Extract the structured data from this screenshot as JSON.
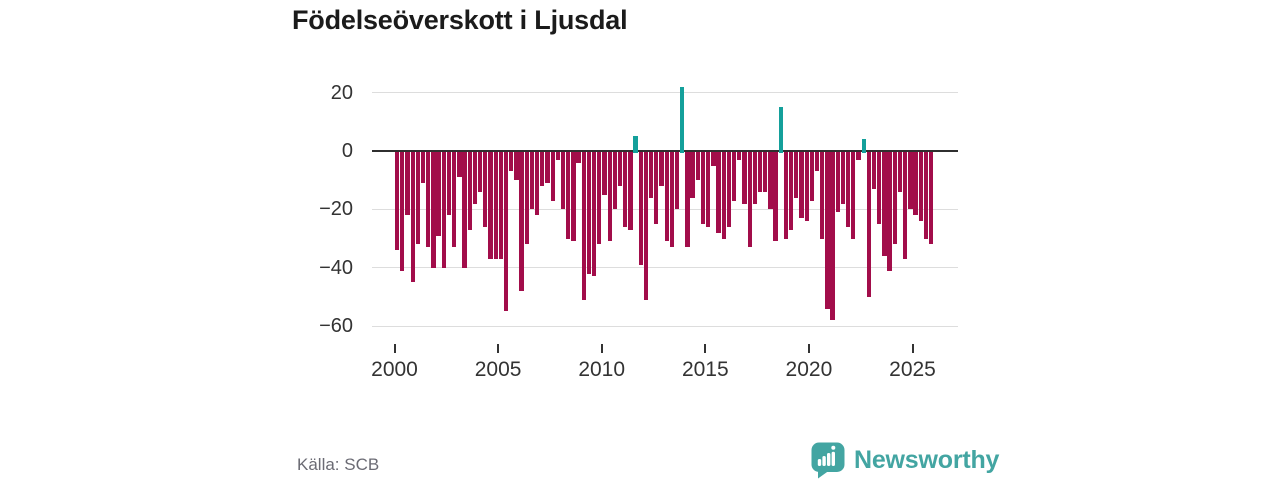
{
  "title": "Födelseöverskott i Ljusdal",
  "source": {
    "label": "Källa: SCB"
  },
  "brand": {
    "name": "Newsworthy",
    "logo_icon": "speech-bubble-bar-chart-icon"
  },
  "colors": {
    "negative_bar": "#a20d4a",
    "positive_bar": "#14a09b",
    "brand_teal": "#43a5a2",
    "title_text": "#1b1b1b",
    "axis_text": "#333333",
    "gridline": "#dddddd",
    "zero_line": "#2f2f2f",
    "source_text": "#6b6b74",
    "background": "#ffffff"
  },
  "chart_data": {
    "type": "bar",
    "title": "Födelseöverskott i Ljusdal",
    "xlabel": "",
    "ylabel": "",
    "ylim": [
      -60,
      20
    ],
    "grid": "horizontal",
    "legend": "none",
    "y_ticks": [
      {
        "v": 20,
        "label": "20"
      },
      {
        "v": 0,
        "label": "0"
      },
      {
        "v": -20,
        "label": "−20"
      },
      {
        "v": -40,
        "label": "−40"
      },
      {
        "v": -60,
        "label": "−60"
      }
    ],
    "x_ticks": [
      {
        "v": 2000,
        "label": "2000"
      },
      {
        "v": 2005,
        "label": "2005"
      },
      {
        "v": 2010,
        "label": "2010"
      },
      {
        "v": 2015,
        "label": "2015"
      },
      {
        "v": 2020,
        "label": "2020"
      },
      {
        "v": 2025,
        "label": "2025"
      }
    ],
    "x": [
      "2000Q1",
      "2000Q2",
      "2000Q3",
      "2000Q4",
      "2001Q1",
      "2001Q2",
      "2001Q3",
      "2001Q4",
      "2002Q1",
      "2002Q2",
      "2002Q3",
      "2002Q4",
      "2003Q1",
      "2003Q2",
      "2003Q3",
      "2003Q4",
      "2004Q1",
      "2004Q2",
      "2004Q3",
      "2004Q4",
      "2005Q1",
      "2005Q2",
      "2005Q3",
      "2005Q4",
      "2006Q1",
      "2006Q2",
      "2006Q3",
      "2006Q4",
      "2007Q1",
      "2007Q2",
      "2007Q3",
      "2007Q4",
      "2008Q1",
      "2008Q2",
      "2008Q3",
      "2008Q4",
      "2009Q1",
      "2009Q2",
      "2009Q3",
      "2009Q4",
      "2010Q1",
      "2010Q2",
      "2010Q3",
      "2010Q4",
      "2011Q1",
      "2011Q2",
      "2011Q3",
      "2011Q4",
      "2012Q1",
      "2012Q2",
      "2012Q3",
      "2012Q4",
      "2013Q1",
      "2013Q2",
      "2013Q3",
      "2013Q4",
      "2014Q1",
      "2014Q2",
      "2014Q3",
      "2014Q4",
      "2015Q1",
      "2015Q2",
      "2015Q3",
      "2015Q4",
      "2016Q1",
      "2016Q2",
      "2016Q3",
      "2016Q4",
      "2017Q1",
      "2017Q2",
      "2017Q3",
      "2017Q4",
      "2018Q1",
      "2018Q2",
      "2018Q3",
      "2018Q4",
      "2019Q1",
      "2019Q2",
      "2019Q3",
      "2019Q4",
      "2020Q1",
      "2020Q2",
      "2020Q3",
      "2020Q4",
      "2021Q1",
      "2021Q2",
      "2021Q3",
      "2021Q4",
      "2022Q1",
      "2022Q2",
      "2022Q3",
      "2022Q4",
      "2023Q1",
      "2023Q2",
      "2023Q3",
      "2023Q4",
      "2024Q1",
      "2024Q2",
      "2024Q3",
      "2024Q4",
      "2025Q1",
      "2025Q2",
      "2025Q3",
      "2025Q4"
    ],
    "values": [
      -34,
      -41,
      -22,
      -45,
      -32,
      -11,
      -33,
      -40,
      -29,
      -40,
      -22,
      -33,
      -9,
      -40,
      -27,
      -18,
      -14,
      -26,
      -37,
      -37,
      -37,
      -55,
      -7,
      -10,
      -48,
      -32,
      -20,
      -22,
      -12,
      -11,
      -17,
      -3,
      -20,
      -30,
      -31,
      -4,
      -51,
      -42,
      -43,
      -32,
      -15,
      -31,
      -20,
      -12,
      -26,
      -27,
      5,
      -39,
      -51,
      -16,
      -25,
      -12,
      -31,
      -33,
      -20,
      22,
      -33,
      -16,
      -10,
      -25,
      -26,
      -5,
      -28,
      -30,
      -26,
      -17,
      -3,
      -18,
      -33,
      -18,
      -14,
      -14,
      -20,
      -31,
      15,
      -30,
      -27,
      -16,
      -23,
      -24,
      -17,
      -7,
      -30,
      -54,
      -58,
      -21,
      -18,
      -26,
      -30,
      -3,
      4,
      -50,
      -13,
      -25,
      -36,
      -41,
      -32,
      -14,
      -37,
      -20,
      -22,
      -24,
      -30,
      -32
    ]
  }
}
